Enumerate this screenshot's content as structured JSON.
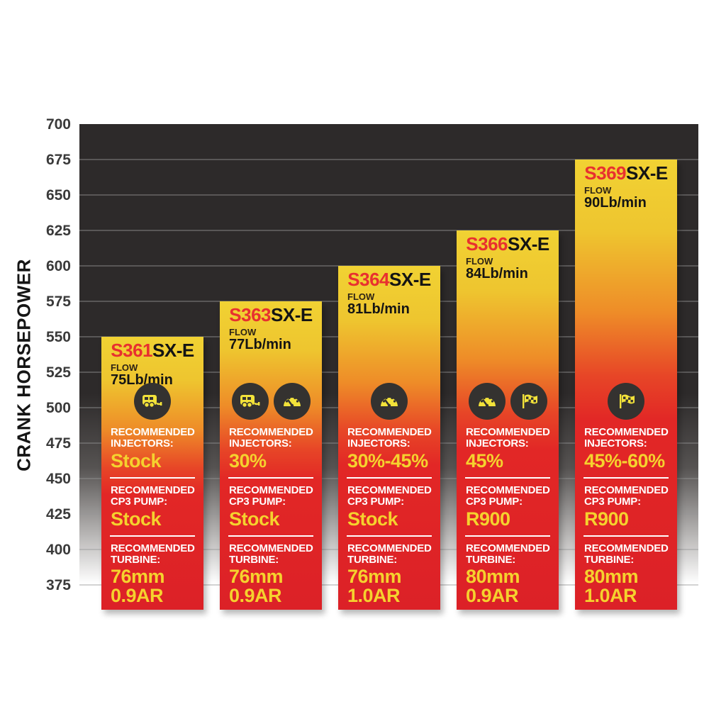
{
  "y_axis": {
    "label": "CRANK HORSEPOWER",
    "ticks": [
      "700",
      "675",
      "650",
      "625",
      "600",
      "575",
      "550",
      "525",
      "500",
      "475",
      "450",
      "425",
      "400",
      "375"
    ]
  },
  "chart_data": {
    "type": "bar",
    "title": "",
    "xlabel": "",
    "ylabel": "CRANK HORSEPOWER",
    "ylim": [
      375,
      700
    ],
    "ytick_step": 25,
    "grid": "horizontal",
    "legend": "none",
    "categories": [
      "S361SX-E",
      "S363SX-E",
      "S364SX-E",
      "S366SX-E",
      "S369SX-E"
    ],
    "values": [
      550,
      575,
      600,
      625,
      675
    ],
    "bars": [
      {
        "model_num": "S361",
        "model_suffix": "SX-E",
        "flow_label": "FLOW",
        "flow": "75Lb/min",
        "crank_hp": 550,
        "icons": [
          "towing-icon"
        ],
        "injectors_label": "RECOMMENDED INJECTORS:",
        "injectors": "Stock",
        "cp3_label": "RECOMMENDED CP3 PUMP:",
        "cp3": "Stock",
        "turbine_label": "RECOMMENDED TURBINE:",
        "turbine1": "76mm",
        "turbine2": "0.9AR"
      },
      {
        "model_num": "S363",
        "model_suffix": "SX-E",
        "flow_label": "FLOW",
        "flow": "77Lb/min",
        "crank_hp": 575,
        "icons": [
          "towing-icon",
          "gauge-icon"
        ],
        "injectors_label": "RECOMMENDED INJECTORS:",
        "injectors": "30%",
        "cp3_label": "RECOMMENDED CP3 PUMP:",
        "cp3": "Stock",
        "turbine_label": "RECOMMENDED TURBINE:",
        "turbine1": "76mm",
        "turbine2": "0.9AR"
      },
      {
        "model_num": "S364",
        "model_suffix": "SX-E",
        "flow_label": "FLOW",
        "flow": "81Lb/min",
        "crank_hp": 600,
        "icons": [
          "gauge-icon"
        ],
        "injectors_label": "RECOMMENDED INJECTORS:",
        "injectors": "30%-45%",
        "cp3_label": "RECOMMENDED CP3 PUMP:",
        "cp3": "Stock",
        "turbine_label": "RECOMMENDED TURBINE:",
        "turbine1": "76mm",
        "turbine2": "1.0AR"
      },
      {
        "model_num": "S366",
        "model_suffix": "SX-E",
        "flow_label": "FLOW",
        "flow": "84Lb/min",
        "crank_hp": 625,
        "icons": [
          "gauge-icon",
          "flag-icon"
        ],
        "injectors_label": "RECOMMENDED INJECTORS:",
        "injectors": "45%",
        "cp3_label": "RECOMMENDED CP3 PUMP:",
        "cp3": "R900",
        "turbine_label": "RECOMMENDED TURBINE:",
        "turbine1": "80mm",
        "turbine2": "0.9AR"
      },
      {
        "model_num": "S369",
        "model_suffix": "SX-E",
        "flow_label": "FLOW",
        "flow": "90Lb/min",
        "crank_hp": 675,
        "icons": [
          "flag-icon"
        ],
        "injectors_label": "RECOMMENDED INJECTORS:",
        "injectors": "45%-60%",
        "cp3_label": "RECOMMENDED CP3 PUMP:",
        "cp3": "R900",
        "turbine_label": "RECOMMENDED TURBINE:",
        "turbine1": "80mm",
        "turbine2": "1.0AR"
      }
    ]
  },
  "colors": {
    "bar_top": "#f1d233",
    "bar_mid": "#ee8c28",
    "bar_bottom": "#dc2127",
    "model_red": "#e8302f",
    "value_yellow": "#f5d22e",
    "label_white": "#ffffff",
    "plot_bg_dark": "#2d2a2a",
    "icon_circle": "#343230",
    "icon_glyph": "#f2e23a"
  }
}
